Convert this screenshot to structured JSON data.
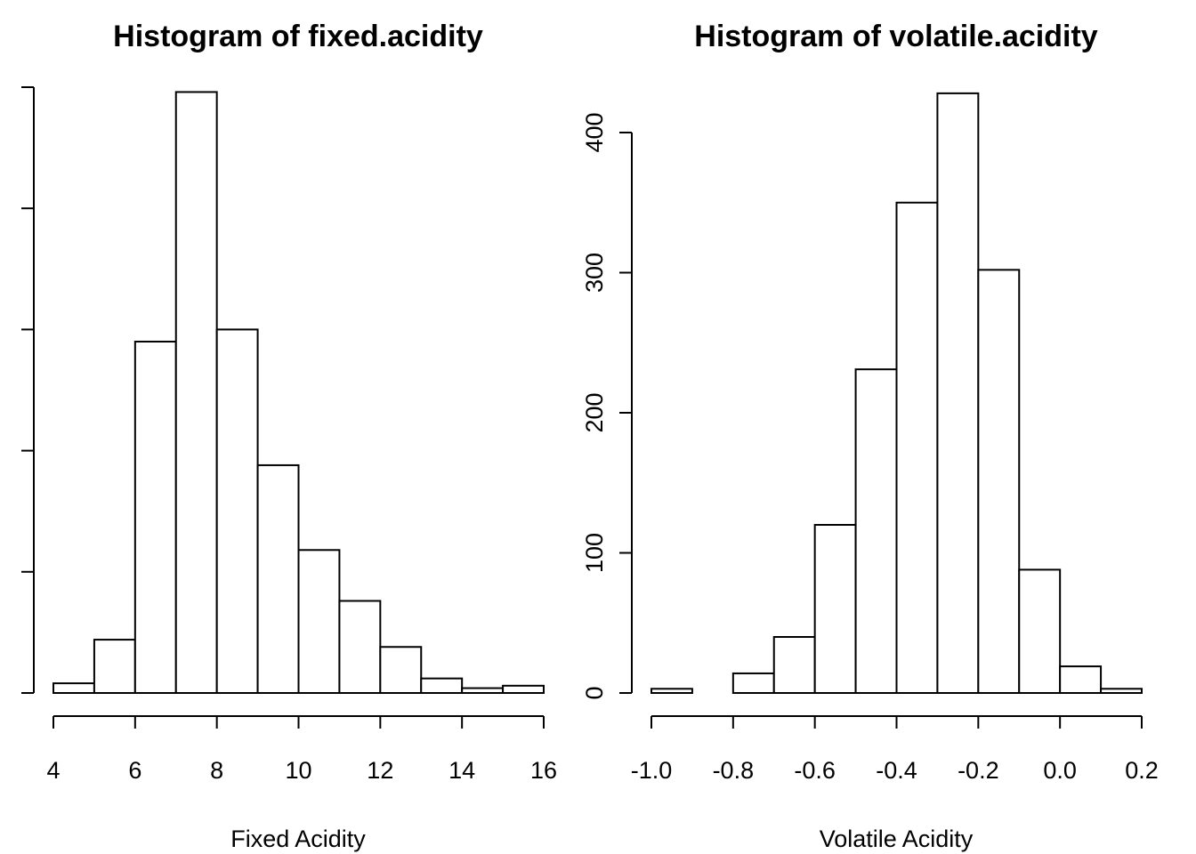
{
  "chart_data": [
    {
      "type": "bar",
      "title": "Histogram of fixed.acidity",
      "xlabel": "Fixed Acidity",
      "ylabel": "",
      "bin_edges": [
        4,
        5,
        6,
        7,
        8,
        9,
        10,
        11,
        12,
        13,
        14,
        15,
        16
      ],
      "values": [
        4,
        22,
        145,
        248,
        150,
        94,
        59,
        38,
        19,
        6,
        2,
        3
      ],
      "xlim": [
        4,
        16
      ],
      "ylim": [
        0,
        250
      ],
      "x_ticks": [
        4,
        6,
        8,
        10,
        12,
        14,
        16
      ],
      "x_tick_labels": [
        "4",
        "6",
        "8",
        "10",
        "12",
        "14",
        "16"
      ],
      "y_ticks": [
        0,
        50,
        100,
        150,
        200,
        250
      ],
      "y_tick_labels": [],
      "grid": false
    },
    {
      "type": "bar",
      "title": "Histogram of volatile.acidity",
      "xlabel": "Volatile Acidity",
      "ylabel": "",
      "bin_edges": [
        -1.0,
        -0.9,
        -0.8,
        -0.7,
        -0.6,
        -0.5,
        -0.4,
        -0.3,
        -0.2,
        -0.1,
        0.0,
        0.1,
        0.2
      ],
      "values": [
        3,
        0,
        14,
        40,
        120,
        231,
        350,
        428,
        302,
        88,
        19,
        3
      ],
      "xlim": [
        -1.0,
        0.2
      ],
      "ylim": [
        0,
        400
      ],
      "x_ticks": [
        -1.0,
        -0.8,
        -0.6,
        -0.4,
        -0.2,
        0.0,
        0.2
      ],
      "x_tick_labels": [
        "-1.0",
        "-0.8",
        "-0.6",
        "-0.4",
        "-0.2",
        "0.0",
        "0.2"
      ],
      "y_ticks": [
        0,
        100,
        200,
        300,
        400
      ],
      "y_tick_labels": [
        "0",
        "100",
        "200",
        "300",
        "400"
      ],
      "grid": false
    }
  ]
}
